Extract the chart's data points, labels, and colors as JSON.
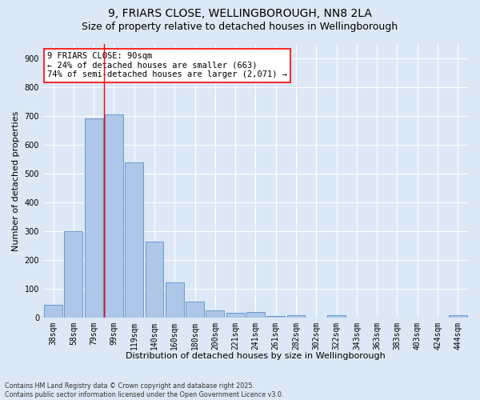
{
  "title_line1": "9, FRIARS CLOSE, WELLINGBOROUGH, NN8 2LA",
  "title_line2": "Size of property relative to detached houses in Wellingborough",
  "xlabel": "Distribution of detached houses by size in Wellingborough",
  "ylabel": "Number of detached properties",
  "bar_labels": [
    "38sqm",
    "58sqm",
    "79sqm",
    "99sqm",
    "119sqm",
    "140sqm",
    "160sqm",
    "180sqm",
    "200sqm",
    "221sqm",
    "241sqm",
    "261sqm",
    "282sqm",
    "302sqm",
    "322sqm",
    "343sqm",
    "363sqm",
    "383sqm",
    "403sqm",
    "424sqm",
    "444sqm"
  ],
  "bar_values": [
    45,
    300,
    693,
    705,
    538,
    265,
    123,
    57,
    25,
    18,
    20,
    5,
    8,
    0,
    8,
    0,
    0,
    0,
    0,
    0,
    8
  ],
  "bar_color": "#aec6e8",
  "bar_edge_color": "#5b8fc9",
  "background_color": "#dce8f5",
  "vline_color": "red",
  "annotation_text": "9 FRIARS CLOSE: 90sqm\n← 24% of detached houses are smaller (663)\n74% of semi-detached houses are larger (2,071) →",
  "annotation_box_color": "white",
  "annotation_box_edge": "red",
  "annotation_fontsize": 7.5,
  "ylim": [
    0,
    950
  ],
  "yticks": [
    0,
    100,
    200,
    300,
    400,
    500,
    600,
    700,
    800,
    900
  ],
  "footer_text": "Contains HM Land Registry data © Crown copyright and database right 2025.\nContains public sector information licensed under the Open Government Licence v3.0.",
  "title_fontsize": 10,
  "subtitle_fontsize": 9,
  "axis_fontsize": 8,
  "tick_fontsize": 7
}
